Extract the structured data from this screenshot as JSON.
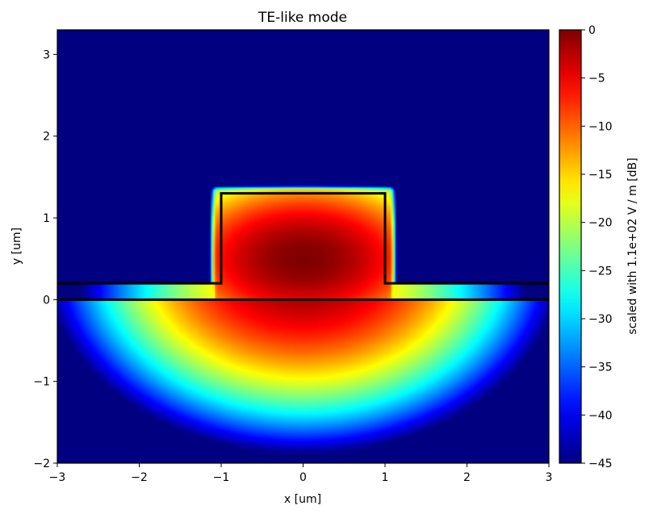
{
  "chart_data": {
    "type": "heatmap",
    "title": "TE-like mode",
    "xlabel": "x [um]",
    "ylabel": "y [um]",
    "xlim": [
      -3,
      3
    ],
    "ylim": [
      -2,
      3.3
    ],
    "x_ticks": [
      -3,
      -2,
      -1,
      0,
      1,
      2,
      3
    ],
    "x_tick_labels": [
      "−3",
      "−2",
      "−1",
      "0",
      "1",
      "2",
      "3"
    ],
    "y_ticks": [
      -2,
      -1,
      0,
      1,
      2,
      3
    ],
    "y_tick_labels": [
      "−2",
      "−1",
      "0",
      "1",
      "2",
      "3"
    ],
    "colormap": "jet",
    "colorbar": {
      "label": "scaled with 1.1e+02 V / m [dB]",
      "range": [
        -45,
        0
      ],
      "ticks": [
        0,
        -5,
        -10,
        -15,
        -20,
        -25,
        -30,
        -35,
        -40,
        -45
      ],
      "tick_labels": [
        "0",
        "−5",
        "−10",
        "−15",
        "−20",
        "−25",
        "−30",
        "−35",
        "−40",
        "−45"
      ]
    },
    "field": {
      "peak_db": 0,
      "peak_location": [
        0,
        0.5
      ],
      "floor_db": -45
    },
    "waveguide_outline": {
      "substrate_line": [
        [
          -3,
          0
        ],
        [
          3,
          0
        ]
      ],
      "ridge_path": [
        [
          -3,
          0.2
        ],
        [
          -1,
          0.2
        ],
        [
          -1,
          1.3
        ],
        [
          1,
          1.3
        ],
        [
          1,
          0.2
        ],
        [
          3,
          0.2
        ]
      ]
    },
    "grid": false,
    "legend": "none"
  },
  "colors": {
    "background_field": "#00007f",
    "peak": "#7f0000",
    "outline": "#000000"
  }
}
